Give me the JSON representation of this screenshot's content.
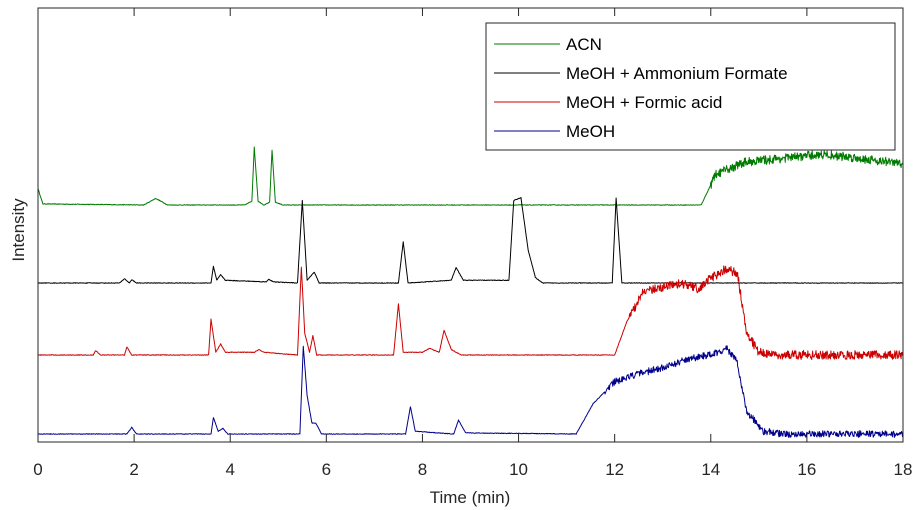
{
  "chart_data": {
    "type": "line",
    "title": "",
    "xlabel": "Time (min)",
    "ylabel": "Intensity",
    "xlim": [
      0,
      18
    ],
    "xticks": [
      0,
      2,
      4,
      6,
      8,
      10,
      12,
      14,
      16,
      18
    ],
    "y_tick_labels": false,
    "grid": false,
    "box": true,
    "legend_position": "top-right",
    "series": [
      {
        "name": "ACN",
        "color": "#007a00",
        "baseline": 0.05,
        "noise_start": 14.0,
        "noise_amp": 0.08,
        "keypoints": [
          [
            0,
            0.3
          ],
          [
            0.1,
            0.02
          ],
          [
            2.2,
            0.0
          ],
          [
            2.45,
            0.12
          ],
          [
            2.7,
            0.0
          ],
          [
            4.3,
            0.0
          ],
          [
            4.45,
            0.07
          ],
          [
            4.5,
            1.05
          ],
          [
            4.58,
            0.07
          ],
          [
            4.7,
            0.0
          ],
          [
            4.82,
            0.05
          ],
          [
            4.87,
            1.0
          ],
          [
            4.94,
            0.05
          ],
          [
            5.1,
            0.0
          ],
          [
            13.8,
            0.0
          ],
          [
            14.1,
            0.55
          ],
          [
            14.7,
            0.78
          ],
          [
            15.5,
            0.85
          ],
          [
            16.3,
            0.92
          ],
          [
            17.0,
            0.86
          ],
          [
            18.0,
            0.75
          ]
        ]
      },
      {
        "name": "MeOH + Ammonium Formate",
        "color": "#000000",
        "baseline": 0.05,
        "noise_start": null,
        "noise_amp": 0,
        "keypoints": [
          [
            0,
            0.0
          ],
          [
            1.7,
            0.0
          ],
          [
            1.8,
            0.08
          ],
          [
            1.9,
            0.0
          ],
          [
            1.95,
            0.06
          ],
          [
            2.05,
            0.0
          ],
          [
            3.6,
            0.0
          ],
          [
            3.65,
            0.3
          ],
          [
            3.72,
            0.05
          ],
          [
            3.8,
            0.15
          ],
          [
            3.9,
            0.05
          ],
          [
            4.75,
            0.02
          ],
          [
            4.8,
            0.07
          ],
          [
            4.9,
            0.02
          ],
          [
            5.4,
            0.0
          ],
          [
            5.5,
            1.5
          ],
          [
            5.6,
            0.05
          ],
          [
            5.75,
            0.2
          ],
          [
            5.85,
            0.0
          ],
          [
            7.5,
            0.0
          ],
          [
            7.6,
            0.75
          ],
          [
            7.7,
            0.0
          ],
          [
            8.6,
            0.05
          ],
          [
            8.7,
            0.28
          ],
          [
            8.85,
            0.05
          ],
          [
            9.8,
            0.05
          ],
          [
            9.9,
            1.5
          ],
          [
            10.05,
            1.55
          ],
          [
            10.2,
            0.6
          ],
          [
            10.35,
            0.1
          ],
          [
            10.5,
            0.0
          ],
          [
            11.95,
            0.0
          ],
          [
            12.03,
            1.55
          ],
          [
            12.15,
            0.0
          ],
          [
            18.0,
            0.0
          ]
        ]
      },
      {
        "name": "MeOH + Formic acid",
        "color": "#cc0000",
        "baseline": 0.05,
        "noise_start": 12.3,
        "noise_amp": 0.08,
        "keypoints": [
          [
            0,
            0.0
          ],
          [
            1.15,
            0.0
          ],
          [
            1.2,
            0.08
          ],
          [
            1.3,
            0.0
          ],
          [
            1.8,
            0.0
          ],
          [
            1.85,
            0.15
          ],
          [
            1.95,
            0.0
          ],
          [
            3.55,
            0.0
          ],
          [
            3.6,
            0.65
          ],
          [
            3.7,
            0.05
          ],
          [
            3.8,
            0.2
          ],
          [
            3.9,
            0.05
          ],
          [
            4.5,
            0.05
          ],
          [
            4.6,
            0.1
          ],
          [
            4.7,
            0.05
          ],
          [
            5.4,
            0.0
          ],
          [
            5.48,
            1.6
          ],
          [
            5.55,
            0.4
          ],
          [
            5.65,
            0.05
          ],
          [
            5.72,
            0.35
          ],
          [
            5.8,
            0.0
          ],
          [
            7.4,
            0.0
          ],
          [
            7.5,
            0.93
          ],
          [
            7.6,
            0.05
          ],
          [
            8.0,
            0.05
          ],
          [
            8.15,
            0.12
          ],
          [
            8.35,
            0.05
          ],
          [
            8.45,
            0.45
          ],
          [
            8.6,
            0.1
          ],
          [
            8.8,
            0.0
          ],
          [
            12.0,
            0.0
          ],
          [
            12.25,
            0.6
          ],
          [
            12.6,
            1.15
          ],
          [
            13.1,
            1.25
          ],
          [
            13.4,
            1.3
          ],
          [
            13.75,
            1.2
          ],
          [
            14.0,
            1.4
          ],
          [
            14.3,
            1.55
          ],
          [
            14.55,
            1.5
          ],
          [
            14.75,
            0.4
          ],
          [
            15.0,
            0.05
          ],
          [
            15.3,
            0.0
          ],
          [
            18.0,
            0.0
          ]
        ]
      },
      {
        "name": "MeOH",
        "color": "#00008b",
        "baseline": 0.05,
        "noise_start": 11.8,
        "noise_amp": 0.06,
        "keypoints": [
          [
            0,
            0.0
          ],
          [
            1.85,
            0.0
          ],
          [
            1.95,
            0.12
          ],
          [
            2.05,
            0.0
          ],
          [
            3.6,
            0.0
          ],
          [
            3.65,
            0.3
          ],
          [
            3.75,
            0.05
          ],
          [
            3.85,
            0.1
          ],
          [
            3.95,
            0.0
          ],
          [
            5.45,
            0.0
          ],
          [
            5.52,
            1.6
          ],
          [
            5.6,
            0.7
          ],
          [
            5.7,
            0.2
          ],
          [
            5.78,
            0.2
          ],
          [
            5.9,
            0.0
          ],
          [
            7.65,
            0.0
          ],
          [
            7.75,
            0.5
          ],
          [
            7.85,
            0.05
          ],
          [
            8.65,
            0.0
          ],
          [
            8.75,
            0.25
          ],
          [
            8.9,
            0.02
          ],
          [
            11.2,
            0.0
          ],
          [
            11.55,
            0.55
          ],
          [
            12.0,
            0.95
          ],
          [
            12.5,
            1.1
          ],
          [
            13.0,
            1.2
          ],
          [
            13.5,
            1.35
          ],
          [
            14.0,
            1.45
          ],
          [
            14.35,
            1.55
          ],
          [
            14.55,
            1.3
          ],
          [
            14.75,
            0.4
          ],
          [
            15.1,
            0.05
          ],
          [
            15.5,
            0.0
          ],
          [
            18.0,
            0.0
          ]
        ]
      }
    ]
  }
}
